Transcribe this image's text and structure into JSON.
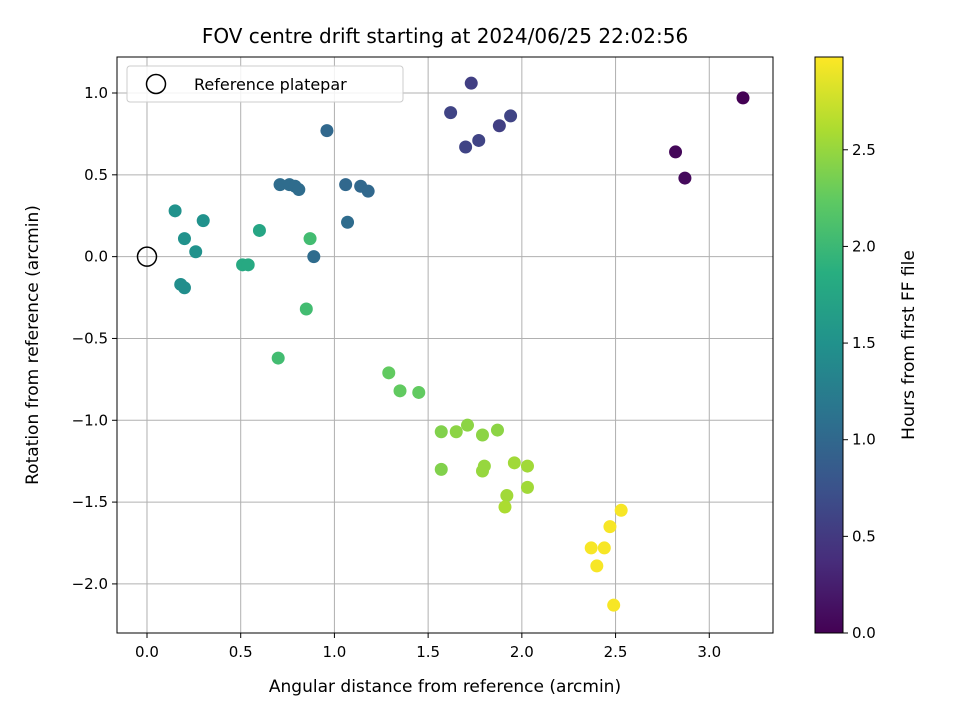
{
  "chart_data": {
    "type": "scatter",
    "title": "FOV centre drift starting at 2024/06/25 22:02:56",
    "xlabel": "Angular distance from reference (arcmin)",
    "ylabel": "Rotation from reference (arcmin)",
    "xlim": [
      -0.16,
      3.34
    ],
    "ylim": [
      -2.3,
      1.22
    ],
    "xticks": [
      0.0,
      0.5,
      1.0,
      1.5,
      2.0,
      2.5,
      3.0
    ],
    "xtick_labels": [
      "0.0",
      "0.5",
      "1.0",
      "1.5",
      "2.0",
      "2.5",
      "3.0"
    ],
    "yticks": [
      1.0,
      0.5,
      0.0,
      -0.5,
      -1.0,
      -1.5,
      -2.0
    ],
    "ytick_labels": [
      "1.0",
      "0.5",
      "0.0",
      "−0.5",
      "−1.0",
      "−1.5",
      "−2.0"
    ],
    "grid": true,
    "legend": {
      "position": "top-left",
      "entries": [
        "Reference platepar"
      ]
    },
    "reference_point": {
      "x": 0.0,
      "y": 0.0
    },
    "colorbar": {
      "label": "Hours from first FF file",
      "colormap": "viridis",
      "range": [
        0.0,
        2.98
      ],
      "ticks": [
        0.0,
        0.5,
        1.0,
        1.5,
        2.0,
        2.5
      ],
      "tick_labels": [
        "0.0",
        "0.5",
        "1.0",
        "1.5",
        "2.0",
        "2.5"
      ]
    },
    "points": [
      {
        "x": 3.18,
        "y": 0.97,
        "hours": 0.0
      },
      {
        "x": 2.82,
        "y": 0.64,
        "hours": 0.05
      },
      {
        "x": 2.87,
        "y": 0.48,
        "hours": 0.08
      },
      {
        "x": 1.73,
        "y": 1.06,
        "hours": 0.55
      },
      {
        "x": 1.62,
        "y": 0.88,
        "hours": 0.6
      },
      {
        "x": 1.94,
        "y": 0.86,
        "hours": 0.6
      },
      {
        "x": 1.88,
        "y": 0.8,
        "hours": 0.55
      },
      {
        "x": 1.77,
        "y": 0.71,
        "hours": 0.6
      },
      {
        "x": 1.7,
        "y": 0.67,
        "hours": 0.6
      },
      {
        "x": 0.96,
        "y": 0.77,
        "hours": 1.0
      },
      {
        "x": 0.71,
        "y": 0.44,
        "hours": 1.05
      },
      {
        "x": 0.76,
        "y": 0.44,
        "hours": 1.05
      },
      {
        "x": 0.79,
        "y": 0.43,
        "hours": 1.05
      },
      {
        "x": 0.81,
        "y": 0.41,
        "hours": 1.05
      },
      {
        "x": 1.06,
        "y": 0.44,
        "hours": 1.0
      },
      {
        "x": 1.14,
        "y": 0.43,
        "hours": 1.0
      },
      {
        "x": 1.18,
        "y": 0.4,
        "hours": 1.0
      },
      {
        "x": 1.07,
        "y": 0.21,
        "hours": 1.05
      },
      {
        "x": 0.89,
        "y": 0.0,
        "hours": 1.05
      },
      {
        "x": 0.15,
        "y": 0.28,
        "hours": 1.5
      },
      {
        "x": 0.3,
        "y": 0.22,
        "hours": 1.5
      },
      {
        "x": 0.2,
        "y": 0.11,
        "hours": 1.5
      },
      {
        "x": 0.26,
        "y": 0.03,
        "hours": 1.5
      },
      {
        "x": 0.18,
        "y": -0.17,
        "hours": 1.45
      },
      {
        "x": 0.2,
        "y": -0.19,
        "hours": 1.45
      },
      {
        "x": 0.6,
        "y": 0.16,
        "hours": 1.75
      },
      {
        "x": 0.51,
        "y": -0.05,
        "hours": 1.8
      },
      {
        "x": 0.54,
        "y": -0.05,
        "hours": 1.8
      },
      {
        "x": 0.87,
        "y": 0.11,
        "hours": 2.05
      },
      {
        "x": 0.85,
        "y": -0.32,
        "hours": 2.05
      },
      {
        "x": 0.7,
        "y": -0.62,
        "hours": 2.05
      },
      {
        "x": 1.29,
        "y": -0.71,
        "hours": 2.25
      },
      {
        "x": 1.35,
        "y": -0.82,
        "hours": 2.25
      },
      {
        "x": 1.45,
        "y": -0.83,
        "hours": 2.25
      },
      {
        "x": 1.57,
        "y": -1.07,
        "hours": 2.4
      },
      {
        "x": 1.65,
        "y": -1.07,
        "hours": 2.45
      },
      {
        "x": 1.71,
        "y": -1.03,
        "hours": 2.45
      },
      {
        "x": 1.79,
        "y": -1.09,
        "hours": 2.45
      },
      {
        "x": 1.87,
        "y": -1.06,
        "hours": 2.45
      },
      {
        "x": 1.57,
        "y": -1.3,
        "hours": 2.4
      },
      {
        "x": 1.8,
        "y": -1.28,
        "hours": 2.5
      },
      {
        "x": 1.79,
        "y": -1.31,
        "hours": 2.5
      },
      {
        "x": 1.96,
        "y": -1.26,
        "hours": 2.55
      },
      {
        "x": 2.03,
        "y": -1.28,
        "hours": 2.55
      },
      {
        "x": 1.92,
        "y": -1.46,
        "hours": 2.55
      },
      {
        "x": 2.03,
        "y": -1.41,
        "hours": 2.55
      },
      {
        "x": 1.91,
        "y": -1.53,
        "hours": 2.6
      },
      {
        "x": 2.53,
        "y": -1.55,
        "hours": 2.95
      },
      {
        "x": 2.47,
        "y": -1.65,
        "hours": 2.95
      },
      {
        "x": 2.37,
        "y": -1.78,
        "hours": 2.95
      },
      {
        "x": 2.44,
        "y": -1.78,
        "hours": 2.95
      },
      {
        "x": 2.4,
        "y": -1.89,
        "hours": 2.95
      },
      {
        "x": 2.49,
        "y": -2.13,
        "hours": 2.95
      }
    ]
  }
}
